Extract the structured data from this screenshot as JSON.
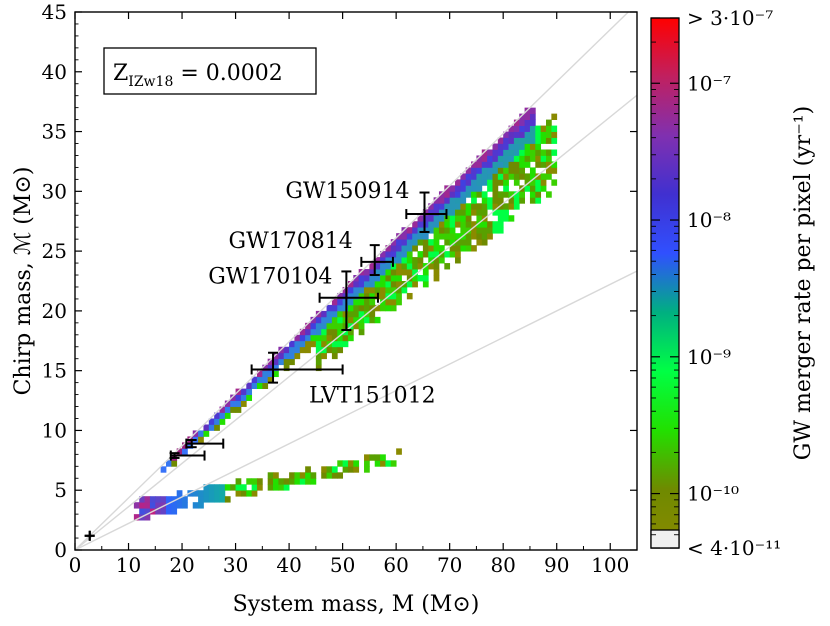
{
  "chart_data": {
    "type": "heatmap",
    "xlabel": "System mass, M (M⊙)",
    "ylabel": "Chirp mass, ℳ (M⊙)",
    "xlim": [
      0,
      105
    ],
    "ylim": [
      0,
      45
    ],
    "xticks": [
      0,
      10,
      20,
      30,
      40,
      50,
      60,
      70,
      80,
      90,
      100
    ],
    "yticks": [
      0,
      5,
      10,
      15,
      20,
      25,
      30,
      35,
      40,
      45
    ],
    "grid": false,
    "metallicity_label": "Z",
    "metallicity_subscript": "IZw18",
    "metallicity_value": " = 0.0002",
    "colorbar": {
      "label": "GW merger rate per pixel (yr⁻¹)",
      "scale": "log",
      "range": [
        4e-11,
        3e-07
      ],
      "tick_labels": [
        "> 3·10⁻⁷",
        "10⁻⁷",
        "10⁻⁸",
        "10⁻⁹",
        "10⁻¹⁰",
        "< 4·10⁻¹¹"
      ],
      "tick_values": [
        3e-07,
        1e-07,
        1e-08,
        1e-09,
        1e-10,
        4e-11
      ],
      "colors": [
        "#8a8a00",
        "#6f8a00",
        "#22e000",
        "#00ff44",
        "#00b080",
        "#3050ff",
        "#4030d0",
        "#8030b0",
        "#c02060",
        "#ff0000"
      ]
    },
    "reference_lines": [
      {
        "mass_ratio": 1,
        "slope": 0.4353
      },
      {
        "mass_ratio": 3,
        "slope": 0.3623
      },
      {
        "mass_ratio": 8,
        "slope": 0.2222
      }
    ],
    "events": [
      {
        "name": "GW150914",
        "M": 65.3,
        "M_err": [
          3.4,
          4.1
        ],
        "Mc": 28.1,
        "Mc_err": [
          1.5,
          1.8
        ],
        "labeled": true
      },
      {
        "name": "GW170814",
        "M": 56.0,
        "M_err": [
          2.5,
          3.4
        ],
        "Mc": 24.1,
        "Mc_err": [
          1.1,
          1.4
        ],
        "labeled": true
      },
      {
        "name": "GW170104",
        "M": 50.7,
        "M_err": [
          5.0,
          5.9
        ],
        "Mc": 21.1,
        "Mc_err": [
          2.7,
          2.2
        ],
        "labeled": true
      },
      {
        "name": "LVT151012",
        "M": 37.0,
        "M_err": [
          4.0,
          13.0
        ],
        "Mc": 15.1,
        "Mc_err": [
          1.1,
          1.4
        ],
        "labeled": true
      },
      {
        "name": "",
        "M": 21.8,
        "M_err": [
          1.0,
          5.9
        ],
        "Mc": 8.9,
        "Mc_err": [
          0.3,
          0.3
        ],
        "labeled": false
      },
      {
        "name": "",
        "M": 18.6,
        "M_err": [
          0.7,
          5.6
        ],
        "Mc": 7.9,
        "Mc_err": [
          0.2,
          0.2
        ],
        "labeled": false
      },
      {
        "name": "",
        "M": 2.74,
        "M_err": [
          0.01,
          0.04
        ],
        "Mc": 1.19,
        "Mc_err": [
          0.01,
          0.01
        ],
        "labeled": false
      }
    ],
    "regions": [
      {
        "name": "near-equal-mass band",
        "M_range": [
          16,
          86
        ],
        "ratio_low": 0.4,
        "ratio_high": 0.4353,
        "color_low_M": "#3a60ff",
        "color_high_M": "#3a50e0"
      },
      {
        "name": "unequal-mass wedge",
        "M_range": [
          18,
          90
        ],
        "ratio_low": 0.335,
        "ratio_high": 0.41,
        "color": "#5a9a10"
      },
      {
        "name": "low-mass tail",
        "M_range": [
          11,
          61
        ],
        "Mc_low": [
          2.5,
          7.3
        ],
        "Mc_high": [
          4.2,
          8.3
        ],
        "color_low_M": "#3a8aff",
        "color_high_M": "#3ae040"
      }
    ]
  }
}
